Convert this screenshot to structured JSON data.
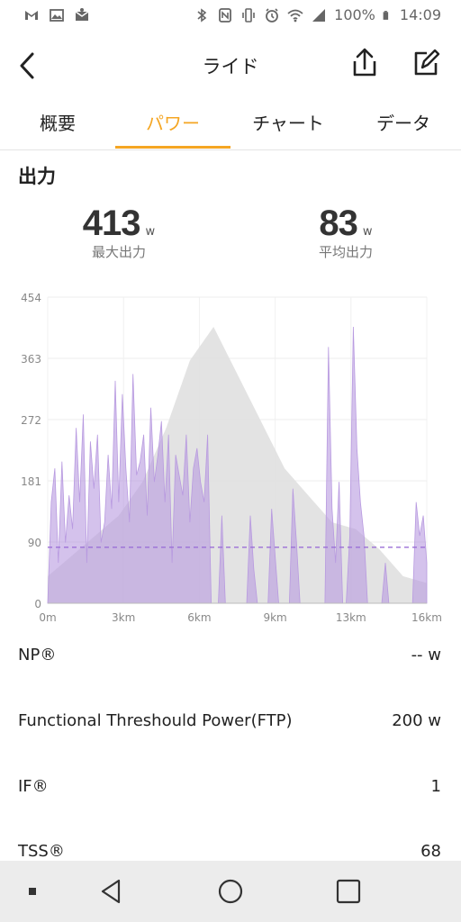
{
  "status_bar": {
    "battery": "100%",
    "time": "14:09"
  },
  "app_bar": {
    "title": "ライド"
  },
  "tabs": [
    {
      "label": "概要"
    },
    {
      "label": "パワー"
    },
    {
      "label": "チャート"
    },
    {
      "label": "データ"
    }
  ],
  "power": {
    "section_title": "出力",
    "max": {
      "value": "413",
      "unit": "w",
      "label": "最大出力"
    },
    "avg": {
      "value": "83",
      "unit": "w",
      "label": "平均出力"
    }
  },
  "chart_data": {
    "type": "area",
    "y_ticks": [
      "454",
      "363",
      "272",
      "181",
      "90",
      "0"
    ],
    "x_ticks": [
      "0m",
      "3km",
      "6km",
      "9km",
      "13km",
      "16km"
    ],
    "ylim": [
      0,
      454
    ],
    "xlim": [
      0,
      16
    ],
    "average_line": 83,
    "colors": {
      "power": "#b89ae0",
      "elevation": "#e0e0e0",
      "avg_line": "#9b6fd6"
    },
    "elevation_profile": [
      [
        0,
        40
      ],
      [
        1,
        70
      ],
      [
        2,
        100
      ],
      [
        3,
        130
      ],
      [
        4,
        180
      ],
      [
        5,
        260
      ],
      [
        6,
        360
      ],
      [
        7,
        410
      ],
      [
        8,
        340
      ],
      [
        9,
        270
      ],
      [
        10,
        200
      ],
      [
        11,
        160
      ],
      [
        12,
        120
      ],
      [
        13,
        110
      ],
      [
        14,
        80
      ],
      [
        15,
        40
      ],
      [
        16,
        30
      ]
    ],
    "power": [
      [
        0,
        0
      ],
      [
        0.15,
        150
      ],
      [
        0.3,
        200
      ],
      [
        0.45,
        60
      ],
      [
        0.6,
        210
      ],
      [
        0.75,
        90
      ],
      [
        0.9,
        160
      ],
      [
        1.05,
        110
      ],
      [
        1.2,
        260
      ],
      [
        1.35,
        150
      ],
      [
        1.5,
        280
      ],
      [
        1.65,
        60
      ],
      [
        1.8,
        240
      ],
      [
        1.95,
        170
      ],
      [
        2.1,
        250
      ],
      [
        2.25,
        90
      ],
      [
        2.4,
        120
      ],
      [
        2.55,
        220
      ],
      [
        2.7,
        140
      ],
      [
        2.85,
        330
      ],
      [
        3.0,
        150
      ],
      [
        3.15,
        310
      ],
      [
        3.3,
        200
      ],
      [
        3.45,
        120
      ],
      [
        3.6,
        340
      ],
      [
        3.75,
        190
      ],
      [
        3.9,
        210
      ],
      [
        4.05,
        250
      ],
      [
        4.2,
        130
      ],
      [
        4.35,
        290
      ],
      [
        4.5,
        180
      ],
      [
        4.65,
        220
      ],
      [
        4.8,
        270
      ],
      [
        4.95,
        150
      ],
      [
        5.1,
        250
      ],
      [
        5.25,
        60
      ],
      [
        5.4,
        220
      ],
      [
        5.55,
        190
      ],
      [
        5.7,
        160
      ],
      [
        5.85,
        250
      ],
      [
        6.0,
        120
      ],
      [
        6.15,
        200
      ],
      [
        6.3,
        230
      ],
      [
        6.45,
        180
      ],
      [
        6.6,
        150
      ],
      [
        6.75,
        250
      ],
      [
        6.9,
        0
      ],
      [
        7.2,
        0
      ],
      [
        7.35,
        130
      ],
      [
        7.5,
        0
      ],
      [
        8.4,
        0
      ],
      [
        8.55,
        130
      ],
      [
        8.7,
        50
      ],
      [
        8.85,
        0
      ],
      [
        9.3,
        0
      ],
      [
        9.45,
        140
      ],
      [
        9.6,
        70
      ],
      [
        9.75,
        0
      ],
      [
        10.2,
        0
      ],
      [
        10.35,
        170
      ],
      [
        10.5,
        90
      ],
      [
        10.65,
        0
      ],
      [
        11.7,
        0
      ],
      [
        11.85,
        380
      ],
      [
        12.0,
        140
      ],
      [
        12.15,
        60
      ],
      [
        12.3,
        180
      ],
      [
        12.45,
        0
      ],
      [
        12.6,
        0
      ],
      [
        12.75,
        100
      ],
      [
        12.9,
        410
      ],
      [
        13.05,
        230
      ],
      [
        13.2,
        150
      ],
      [
        13.35,
        100
      ],
      [
        13.5,
        0
      ],
      [
        14.1,
        0
      ],
      [
        14.25,
        60
      ],
      [
        14.4,
        0
      ],
      [
        15.4,
        0
      ],
      [
        15.55,
        150
      ],
      [
        15.7,
        100
      ],
      [
        15.85,
        130
      ],
      [
        16,
        60
      ]
    ]
  },
  "metrics": [
    {
      "label": "NP®",
      "value": "-- w"
    },
    {
      "label": "Functional Threshould Power(FTP)",
      "value": "200 w"
    },
    {
      "label": "IF®",
      "value": "1"
    },
    {
      "label": "TSS®",
      "value": "68"
    }
  ]
}
